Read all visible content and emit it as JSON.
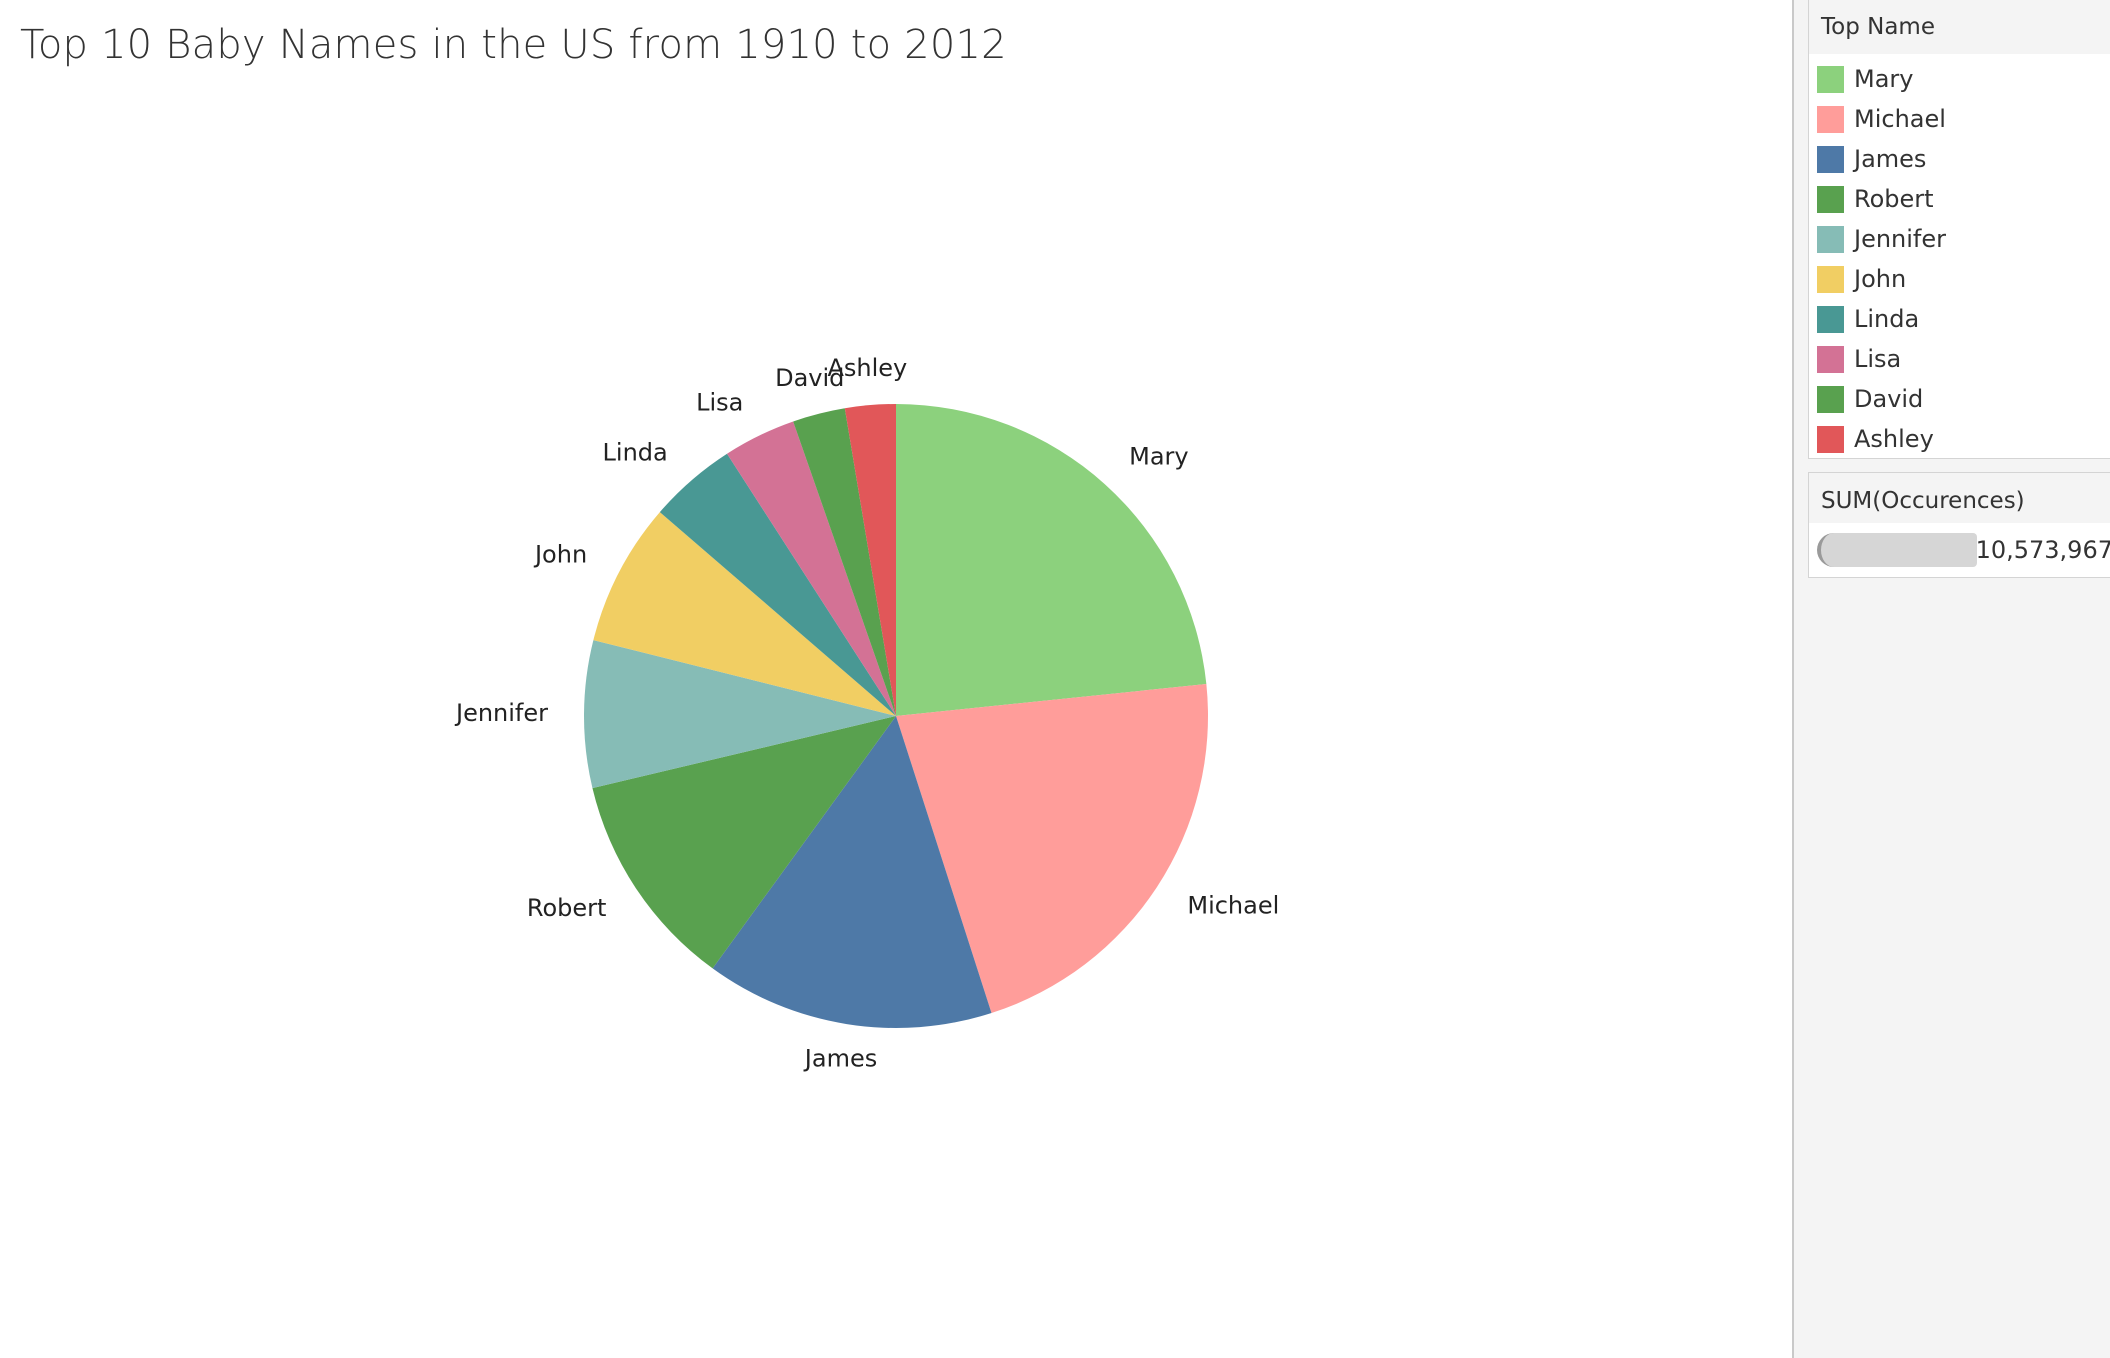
{
  "title": "Top 10 Baby Names in the US from 1910 to 2012",
  "legend": {
    "title": "Top Name",
    "items": [
      {
        "label": "Mary",
        "color": "#8cd17d"
      },
      {
        "label": "Michael",
        "color": "#ff9d9a"
      },
      {
        "label": "James",
        "color": "#4e79a7"
      },
      {
        "label": "Robert",
        "color": "#59a14f"
      },
      {
        "label": "Jennifer",
        "color": "#86bcb6"
      },
      {
        "label": "John",
        "color": "#f1ce63"
      },
      {
        "label": "Linda",
        "color": "#499894"
      },
      {
        "label": "Lisa",
        "color": "#d37295"
      },
      {
        "label": "David",
        "color": "#59a14f"
      },
      {
        "label": "Ashley",
        "color": "#e15759"
      }
    ]
  },
  "size_legend": {
    "title": "SUM(Occurences)",
    "value": "10,573,967"
  },
  "chart_data": {
    "type": "pie",
    "title": "Top 10 Baby Names in the US from 1910 to 2012",
    "measure": "SUM(Occurences)",
    "slices": [
      {
        "label": "Mary",
        "share": 0.236,
        "color": "#8cd17d"
      },
      {
        "label": "Michael",
        "share": 0.219,
        "color": "#ff9d9a"
      },
      {
        "label": "James",
        "share": 0.151,
        "color": "#4e79a7"
      },
      {
        "label": "Robert",
        "share": 0.114,
        "color": "#59a14f"
      },
      {
        "label": "Jennifer",
        "share": 0.077,
        "color": "#86bcb6"
      },
      {
        "label": "John",
        "share": 0.075,
        "color": "#f1ce63"
      },
      {
        "label": "Linda",
        "share": 0.046,
        "color": "#499894"
      },
      {
        "label": "Lisa",
        "share": 0.038,
        "color": "#d37295"
      },
      {
        "label": "David",
        "share": 0.0275,
        "color": "#59a14f"
      },
      {
        "label": "Ashley",
        "share": 0.0265,
        "color": "#e15759"
      }
    ],
    "start_angle": "12 o'clock",
    "direction": "clockwise"
  }
}
